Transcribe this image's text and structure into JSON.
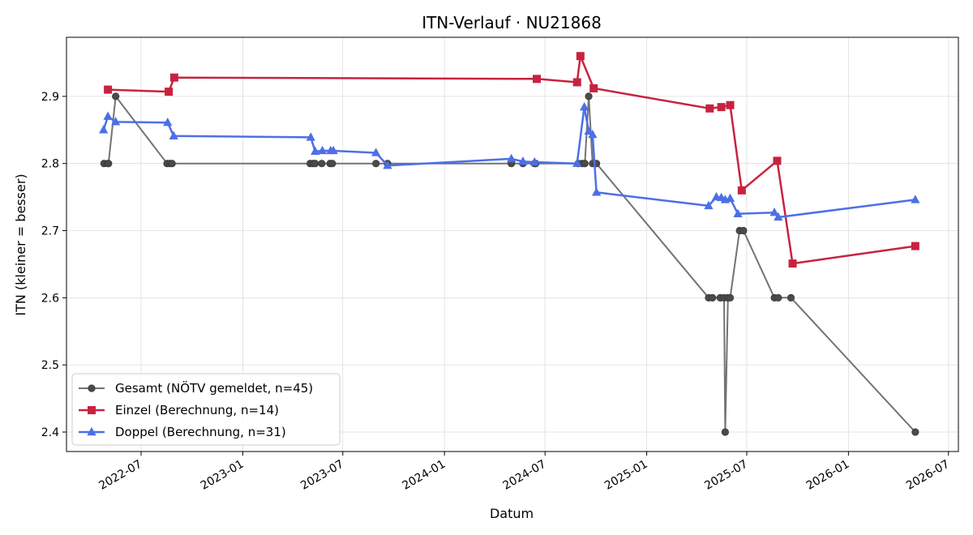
{
  "chart_data": {
    "type": "line",
    "title": "ITN-Verlauf · NU21868",
    "xlabel": "Datum",
    "ylabel": "ITN  (kleiner = besser)",
    "xlim": [
      "2022-02-16",
      "2026-07-19"
    ],
    "ylim": [
      2.371,
      2.988
    ],
    "grid": true,
    "legend_position": "lower-left",
    "x_ticks": [
      "2022-07",
      "2023-01",
      "2023-07",
      "2024-01",
      "2024-07",
      "2025-01",
      "2025-07",
      "2026-01",
      "2026-07"
    ],
    "y_ticks": [
      "2.4",
      "2.5",
      "2.6",
      "2.7",
      "2.8",
      "2.9"
    ],
    "series": [
      {
        "name": "Gesamt (NÖTV gemeldet, n=45)",
        "color": "#737373",
        "marker": "circle",
        "points": [
          [
            "2022-04-25",
            2.8
          ],
          [
            "2022-05-02",
            2.8
          ],
          [
            "2022-05-03",
            2.8
          ],
          [
            "2022-05-16",
            2.9
          ],
          [
            "2022-08-17",
            2.8
          ],
          [
            "2022-08-22",
            2.8
          ],
          [
            "2022-08-26",
            2.8
          ],
          [
            "2023-05-03",
            2.8
          ],
          [
            "2023-05-08",
            2.8
          ],
          [
            "2023-05-12",
            2.8
          ],
          [
            "2023-05-24",
            2.8
          ],
          [
            "2023-06-08",
            2.8
          ],
          [
            "2023-06-12",
            2.8
          ],
          [
            "2023-08-30",
            2.8
          ],
          [
            "2023-09-20",
            2.8
          ],
          [
            "2024-05-01",
            2.8
          ],
          [
            "2024-05-22",
            2.8
          ],
          [
            "2024-06-12",
            2.8
          ],
          [
            "2024-06-14",
            2.8
          ],
          [
            "2024-08-30",
            2.8
          ],
          [
            "2024-09-06",
            2.8
          ],
          [
            "2024-09-11",
            2.8
          ],
          [
            "2024-09-18",
            2.9
          ],
          [
            "2024-09-25",
            2.8
          ],
          [
            "2024-10-02",
            2.8
          ],
          [
            "2025-04-23",
            2.6
          ],
          [
            "2025-04-30",
            2.6
          ],
          [
            "2025-05-14",
            2.6
          ],
          [
            "2025-05-21",
            2.6
          ],
          [
            "2025-05-23",
            2.4
          ],
          [
            "2025-05-28",
            2.6
          ],
          [
            "2025-06-01",
            2.6
          ],
          [
            "2025-06-18",
            2.7
          ],
          [
            "2025-06-25",
            2.7
          ],
          [
            "2025-08-20",
            2.6
          ],
          [
            "2025-08-27",
            2.6
          ],
          [
            "2025-09-19",
            2.6
          ],
          [
            "2026-05-02",
            2.4
          ]
        ]
      },
      {
        "name": "Einzel (Berechnung, n=14)",
        "color": "#c8223f",
        "marker": "square",
        "points": [
          [
            "2022-05-02",
            2.91
          ],
          [
            "2022-08-20",
            2.907
          ],
          [
            "2022-08-30",
            2.928
          ],
          [
            "2024-06-16",
            2.926
          ],
          [
            "2024-08-28",
            2.921
          ],
          [
            "2024-09-03",
            2.96
          ],
          [
            "2024-09-27",
            2.912
          ],
          [
            "2025-04-25",
            2.882
          ],
          [
            "2025-05-16",
            2.884
          ],
          [
            "2025-06-01",
            2.887
          ],
          [
            "2025-06-22",
            2.76
          ],
          [
            "2025-08-25",
            2.804
          ],
          [
            "2025-09-22",
            2.651
          ],
          [
            "2026-05-02",
            2.677
          ]
        ]
      },
      {
        "name": "Doppel (Berechnung, n=31)",
        "color": "#4c6fe8",
        "marker": "triangle",
        "points": [
          [
            "2022-04-24",
            2.85
          ],
          [
            "2022-05-02",
            2.87
          ],
          [
            "2022-05-16",
            2.862
          ],
          [
            "2022-08-18",
            2.861
          ],
          [
            "2022-08-29",
            2.841
          ],
          [
            "2023-05-04",
            2.839
          ],
          [
            "2023-05-12",
            2.818
          ],
          [
            "2023-05-25",
            2.819
          ],
          [
            "2023-06-09",
            2.819
          ],
          [
            "2023-06-14",
            2.819
          ],
          [
            "2023-08-30",
            2.816
          ],
          [
            "2023-09-20",
            2.797
          ],
          [
            "2024-05-01",
            2.807
          ],
          [
            "2024-05-22",
            2.803
          ],
          [
            "2024-06-12",
            2.802
          ],
          [
            "2024-08-28",
            2.8
          ],
          [
            "2024-09-10",
            2.884
          ],
          [
            "2024-09-18",
            2.848
          ],
          [
            "2024-09-25",
            2.843
          ],
          [
            "2024-10-02",
            2.757
          ],
          [
            "2025-04-23",
            2.737
          ],
          [
            "2025-05-07",
            2.75
          ],
          [
            "2025-05-16",
            2.749
          ],
          [
            "2025-05-23",
            2.746
          ],
          [
            "2025-06-01",
            2.748
          ],
          [
            "2025-06-15",
            2.725
          ],
          [
            "2025-08-20",
            2.727
          ],
          [
            "2025-08-27",
            2.72
          ],
          [
            "2026-05-02",
            2.746
          ]
        ]
      }
    ]
  }
}
